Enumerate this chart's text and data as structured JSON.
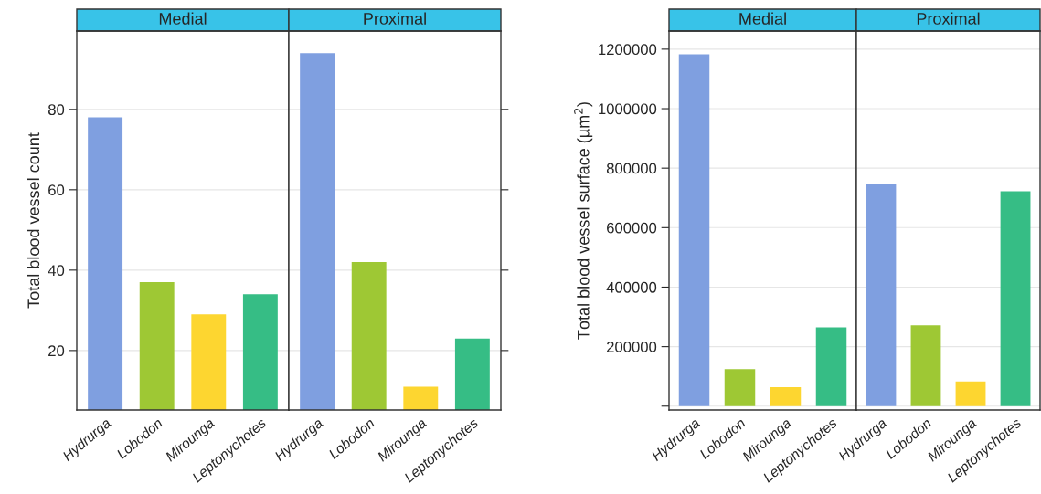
{
  "chart_data": [
    {
      "type": "bar",
      "title": "Medial",
      "ylabel": "Total blood vessel count",
      "categories": [
        "Hydrurga",
        "Lobodon",
        "Mirounga",
        "Leptonychotes"
      ],
      "values": [
        78,
        37,
        29,
        34
      ],
      "colors": [
        "#7f9fe0",
        "#9ec834",
        "#fdd630",
        "#36bd85"
      ],
      "ylim": [
        5.2,
        99.5
      ],
      "yticks": [
        20,
        40,
        60,
        80
      ],
      "grid": "y"
    },
    {
      "type": "bar",
      "title": "Proximal",
      "categories": [
        "Hydrurga",
        "Lobodon",
        "Mirounga",
        "Leptonychotes"
      ],
      "values": [
        94,
        42,
        11,
        23
      ],
      "colors": [
        "#7f9fe0",
        "#9ec834",
        "#fdd630",
        "#36bd85"
      ],
      "ylim": [
        5.2,
        99.5
      ],
      "yticks": [
        20,
        40,
        60,
        80
      ],
      "grid": "y",
      "tick_labels": "x"
    },
    {
      "type": "bar",
      "title": "Medial",
      "ylabel": "Total blood vessel surface (µm$^{2}$)",
      "categories": [
        "Hydrurga",
        "Lobodon",
        "Mirounga",
        "Leptonychotes"
      ],
      "values": [
        1183000,
        124000,
        64000,
        265000
      ],
      "colors": [
        "#7f9fe0",
        "#9ec834",
        "#fdd630",
        "#36bd85"
      ],
      "ylim": [
        -13000,
        1261000
      ],
      "yticks": [
        {
          "value": 0,
          "label": null
        },
        200000,
        400000,
        600000,
        800000,
        1000000,
        1200000
      ],
      "grid": "y"
    },
    {
      "type": "bar",
      "title": "Proximal",
      "categories": [
        "Hydrurga",
        "Lobodon",
        "Mirounga",
        "Leptonychotes"
      ],
      "values": [
        748000,
        272000,
        83000,
        722000
      ],
      "colors": [
        "#7f9fe0",
        "#9ec834",
        "#fdd630",
        "#36bd85"
      ],
      "ylim": [
        -13000,
        1261000
      ],
      "yticks": [
        {
          "value": 0,
          "label": null
        },
        200000,
        400000,
        600000,
        800000,
        1000000,
        1200000
      ],
      "grid": "y",
      "tick_labels": "x"
    }
  ]
}
